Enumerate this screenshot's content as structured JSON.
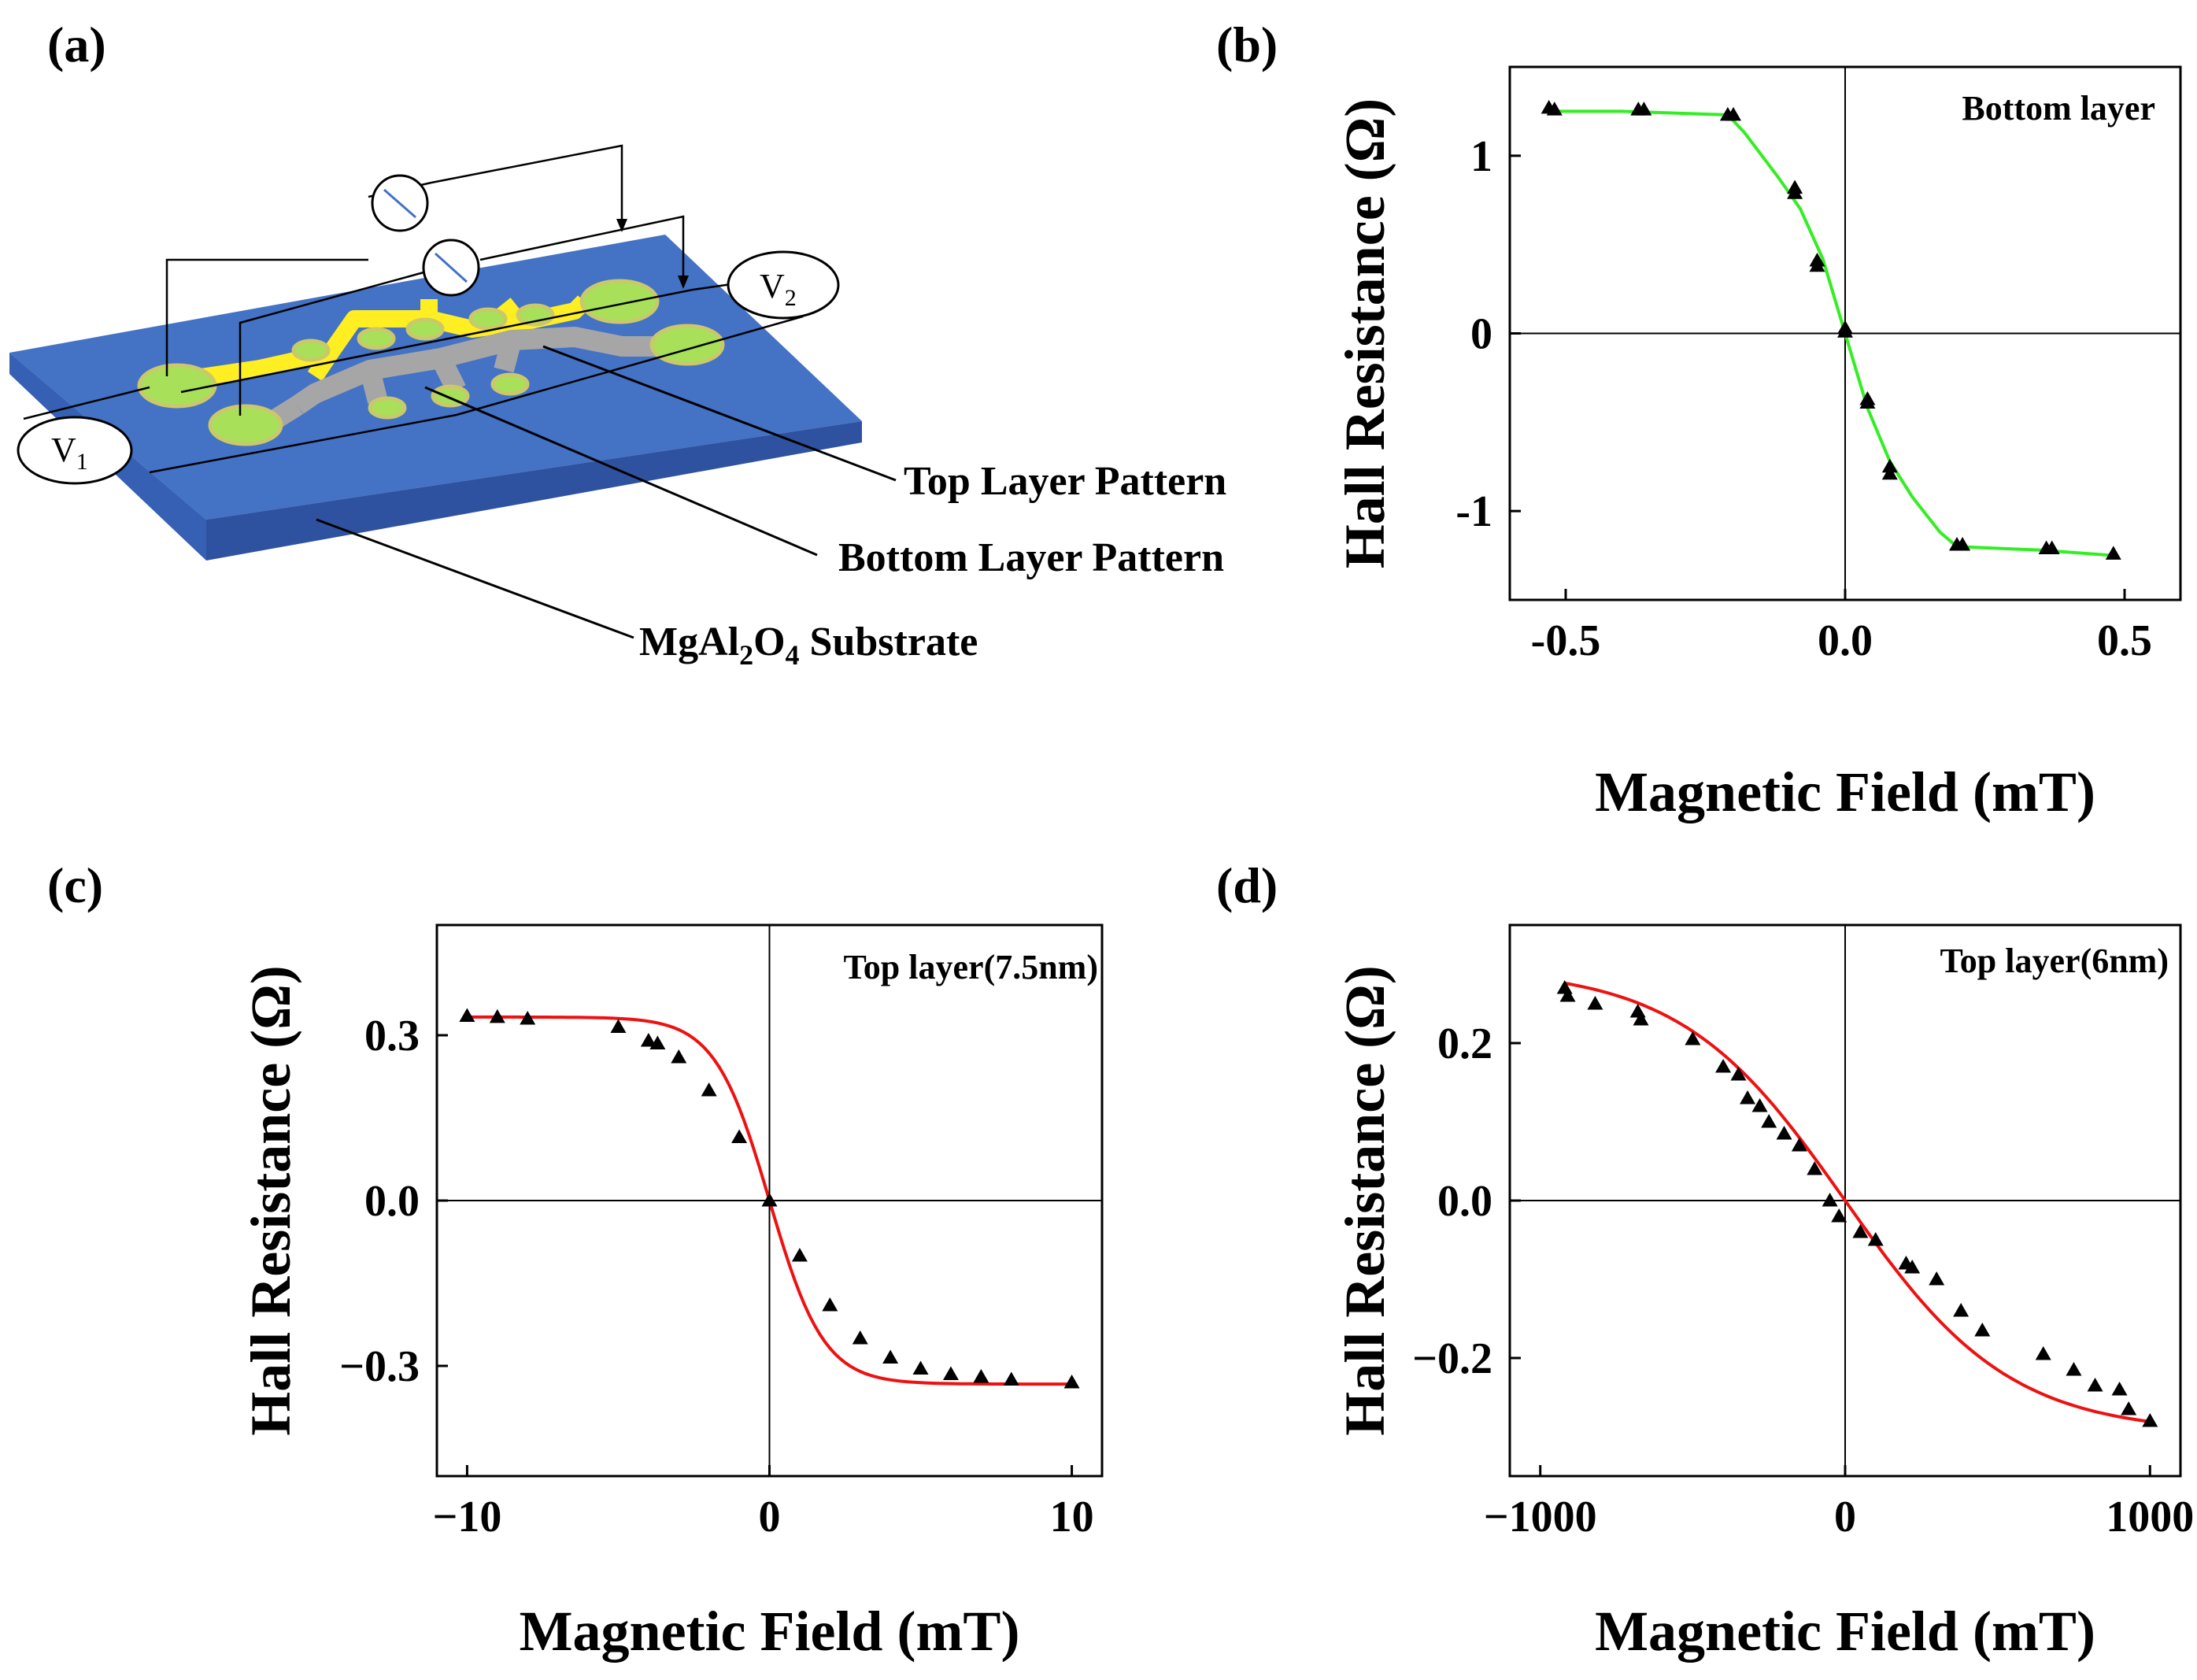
{
  "colors": {
    "substrate_top": "#4472c4",
    "substrate_side": "#2f52a0",
    "pad": "#a8e05a",
    "pad_rim": "#c9c96a",
    "top_pattern": "#ffee22",
    "bottom_pattern": "#a6a6a6",
    "fit_green": "#33ee22",
    "fit_red": "#ee1111",
    "axis": "#000000"
  },
  "panel_a": {
    "label": "(a)",
    "v1": {
      "main": "V",
      "sub": "1"
    },
    "v2": {
      "main": "V",
      "sub": "2"
    },
    "top_layer_label": "Top Layer Pattern",
    "bottom_layer_label": "Bottom Layer Pattern",
    "substrate": {
      "part1": "MgAl",
      "sub1": "2",
      "part2": "O",
      "sub2": "4",
      "part3": " Substrate"
    }
  },
  "chart_data": [
    {
      "id": "b",
      "panel_label": "(b)",
      "type": "scatter",
      "title": "Bottom layer",
      "xlabel": "Magnetic Field (mT)",
      "ylabel": "Hall Resistance (Ω)",
      "xlim": [
        -0.6,
        0.6
      ],
      "ylim": [
        -1.5,
        1.5
      ],
      "xticks": [
        -0.5,
        0.0,
        0.5
      ],
      "xtick_labels": [
        "-0.5",
        "0.0",
        "0.5"
      ],
      "yticks": [
        -1,
        0,
        1
      ],
      "ytick_labels": [
        "-1",
        "0",
        "1"
      ],
      "fit_color": "#33ee22",
      "points": [
        [
          -0.53,
          1.27
        ],
        [
          -0.52,
          1.26
        ],
        [
          -0.37,
          1.26
        ],
        [
          -0.36,
          1.26
        ],
        [
          -0.21,
          1.23
        ],
        [
          -0.2,
          1.23
        ],
        [
          -0.09,
          0.82
        ],
        [
          -0.09,
          0.79
        ],
        [
          -0.05,
          0.41
        ],
        [
          -0.05,
          0.38
        ],
        [
          0.0,
          0.03
        ],
        [
          0.0,
          0.01
        ],
        [
          0.04,
          -0.37
        ],
        [
          0.04,
          -0.39
        ],
        [
          0.08,
          -0.75
        ],
        [
          0.08,
          -0.79
        ],
        [
          0.2,
          -1.19
        ],
        [
          0.21,
          -1.19
        ],
        [
          0.36,
          -1.21
        ],
        [
          0.37,
          -1.21
        ],
        [
          0.48,
          -1.24
        ]
      ],
      "fit": [
        [
          -0.53,
          1.25
        ],
        [
          -0.4,
          1.25
        ],
        [
          -0.21,
          1.23
        ],
        [
          -0.18,
          1.13
        ],
        [
          -0.12,
          0.88
        ],
        [
          -0.08,
          0.7
        ],
        [
          -0.04,
          0.42
        ],
        [
          0.0,
          0.0
        ],
        [
          0.04,
          -0.42
        ],
        [
          0.08,
          -0.72
        ],
        [
          0.12,
          -0.92
        ],
        [
          0.17,
          -1.12
        ],
        [
          0.2,
          -1.2
        ],
        [
          0.35,
          -1.22
        ],
        [
          0.48,
          -1.25
        ]
      ]
    },
    {
      "id": "c",
      "panel_label": "(c)",
      "type": "scatter",
      "title": "Top layer(7.5nm)",
      "xlabel": "Magnetic Field (mT)",
      "ylabel": "Hall Resistance (Ω)",
      "xlim": [
        -11,
        11
      ],
      "ylim": [
        -0.5,
        0.5
      ],
      "xticks": [
        -10,
        0,
        10
      ],
      "xtick_labels": [
        "−10",
        "0",
        "10"
      ],
      "yticks": [
        -0.3,
        0.0,
        0.3
      ],
      "ytick_labels": [
        "−0.3",
        "0.0",
        "0.3"
      ],
      "fit_color": "#ee1111",
      "points": [
        [
          -10,
          0.335
        ],
        [
          -9,
          0.333
        ],
        [
          -8,
          0.33
        ],
        [
          -5,
          0.315
        ],
        [
          -4,
          0.29
        ],
        [
          -3.7,
          0.285
        ],
        [
          -3,
          0.26
        ],
        [
          -2,
          0.2
        ],
        [
          -1,
          0.115
        ],
        [
          0,
          0.0
        ],
        [
          1,
          -0.1
        ],
        [
          2,
          -0.19
        ],
        [
          3,
          -0.25
        ],
        [
          4,
          -0.285
        ],
        [
          5,
          -0.305
        ],
        [
          6,
          -0.315
        ],
        [
          7,
          -0.32
        ],
        [
          8,
          -0.325
        ],
        [
          10,
          -0.33
        ]
      ],
      "fit": {
        "amplitude": 0.333,
        "scale": 1.8
      }
    },
    {
      "id": "d",
      "panel_label": "(d)",
      "type": "scatter",
      "title": "Top layer(6nm)",
      "xlabel": "Magnetic Field (mT)",
      "ylabel": "Hall Resistance (Ω)",
      "xlim": [
        -1100,
        1100
      ],
      "ylim": [
        -0.35,
        0.35
      ],
      "xticks": [
        -1000,
        0,
        1000
      ],
      "xtick_labels": [
        "−1000",
        "0",
        "1000"
      ],
      "yticks": [
        -0.2,
        0.0,
        0.2
      ],
      "ytick_labels": [
        "−0.2",
        "0.0",
        "0.2"
      ],
      "fit_color": "#ee1111",
      "points": [
        [
          -920,
          0.27
        ],
        [
          -910,
          0.26
        ],
        [
          -820,
          0.25
        ],
        [
          -680,
          0.24
        ],
        [
          -670,
          0.23
        ],
        [
          -500,
          0.205
        ],
        [
          -400,
          0.17
        ],
        [
          -350,
          0.16
        ],
        [
          -320,
          0.13
        ],
        [
          -280,
          0.12
        ],
        [
          -250,
          0.1
        ],
        [
          -200,
          0.085
        ],
        [
          -150,
          0.07
        ],
        [
          -100,
          0.04
        ],
        [
          -50,
          0.0
        ],
        [
          -20,
          -0.02
        ],
        [
          50,
          -0.04
        ],
        [
          100,
          -0.05
        ],
        [
          200,
          -0.08
        ],
        [
          220,
          -0.085
        ],
        [
          300,
          -0.1
        ],
        [
          380,
          -0.14
        ],
        [
          450,
          -0.165
        ],
        [
          650,
          -0.195
        ],
        [
          750,
          -0.215
        ],
        [
          820,
          -0.235
        ],
        [
          900,
          -0.24
        ],
        [
          930,
          -0.265
        ],
        [
          1000,
          -0.28
        ]
      ],
      "fit": {
        "amplitude": 0.295,
        "scale": 540,
        "xmin": -920,
        "xmax": 1000
      }
    }
  ]
}
